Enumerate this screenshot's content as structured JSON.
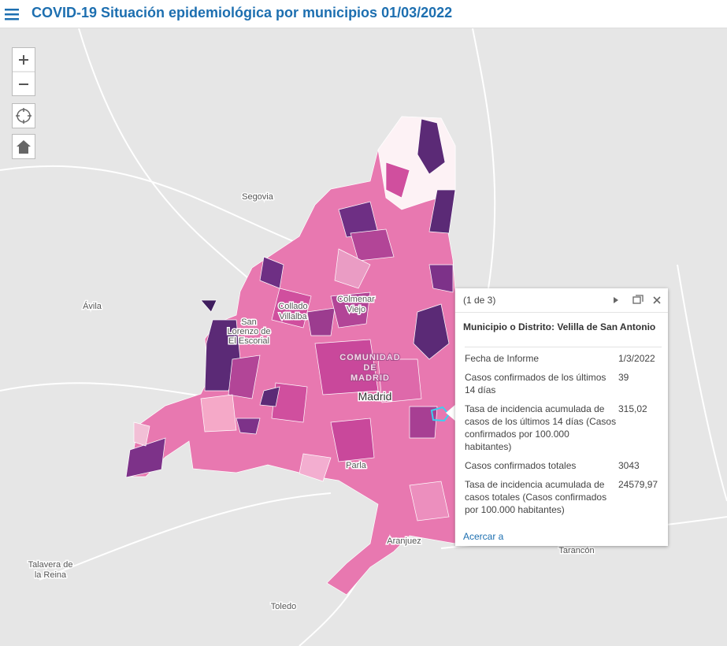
{
  "header": {
    "title": "COVID-19 Situación epidemiológica por municipios 01/03/2022"
  },
  "map": {
    "labels": [
      {
        "lines": [
          "Segovia"
        ]
      },
      {
        "lines": [
          "Ávila"
        ]
      },
      {
        "lines": [
          "Collado",
          "Villalba"
        ]
      },
      {
        "lines": [
          "Colmenar",
          "Viejo"
        ]
      },
      {
        "lines": [
          "San",
          "Lorenzo de",
          "El Escorial"
        ]
      },
      {
        "lines": [
          "COMUNIDAD",
          "DE",
          "MADRID"
        ]
      },
      {
        "lines": [
          "Madrid"
        ]
      },
      {
        "lines": [
          "Parla"
        ]
      },
      {
        "lines": [
          "Aranjuez"
        ]
      },
      {
        "lines": [
          "Talavera de",
          "la Reina"
        ]
      },
      {
        "lines": [
          "Toledo"
        ]
      },
      {
        "lines": [
          "Tarancón"
        ]
      }
    ]
  },
  "popup": {
    "pager": "(1 de 3)",
    "heading": "Municipio o Distrito: Velilla de San Antonio",
    "rows": [
      {
        "label": "Fecha de Informe",
        "value": "1/3/2022"
      },
      {
        "label": "Casos confirmados de los últimos 14 días",
        "value": "39"
      },
      {
        "label": "Tasa de incidencia acumulada de casos de los últimos 14 días (Casos confirmados por 100.000 habitantes)",
        "value": "315,02"
      },
      {
        "label": "Casos confirmados totales",
        "value": "3043"
      },
      {
        "label": "Tasa de incidencia acumulada de casos totales (Casos confirmados por 100.000 habitantes)",
        "value": "24579,97"
      }
    ],
    "action": "Acercar a"
  }
}
